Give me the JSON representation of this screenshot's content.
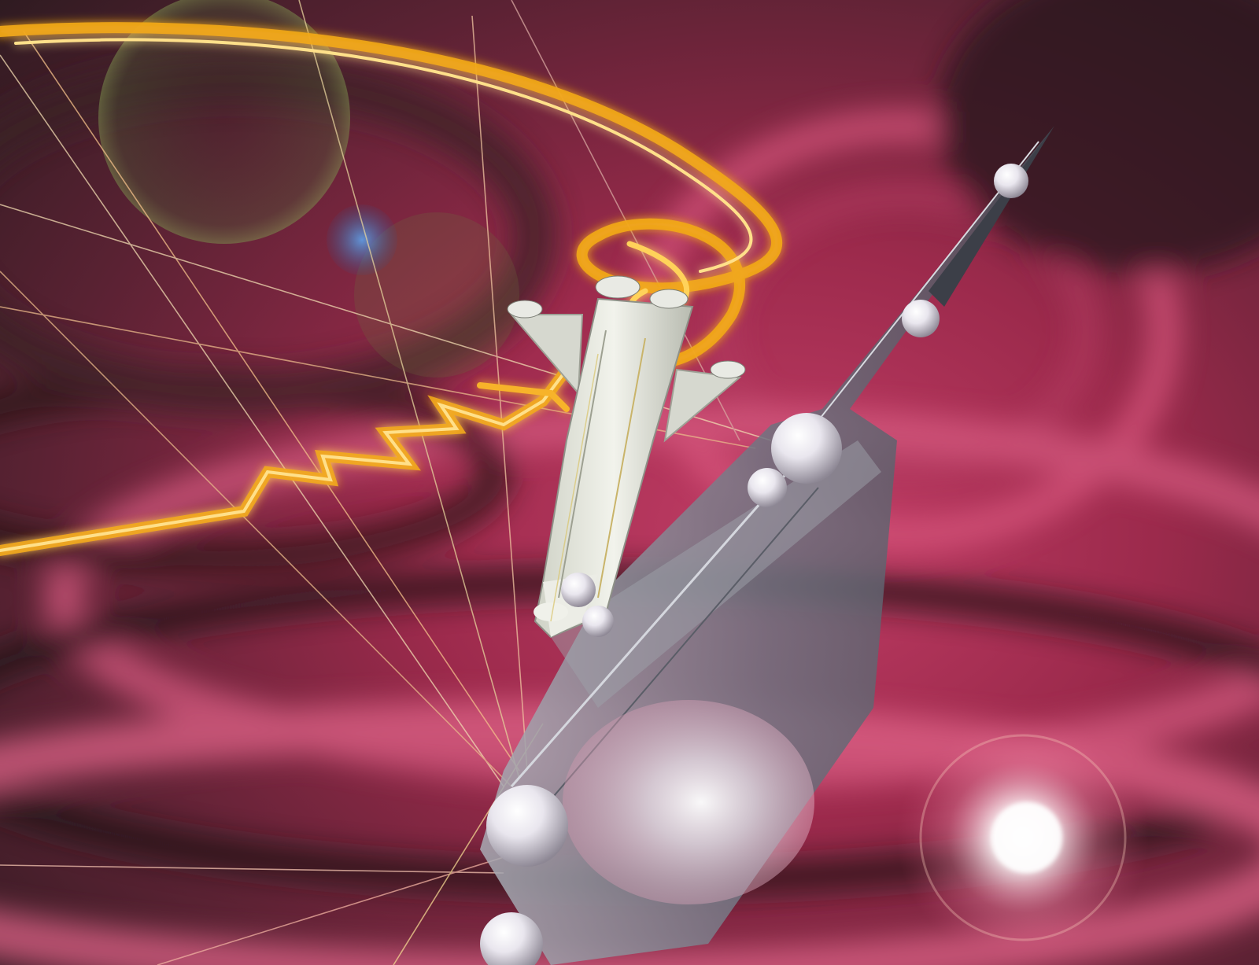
{
  "scene": {
    "subject": "space-shuttle-over-tower",
    "palette": {
      "backdrop_dark": "#2b1a1f",
      "backdrop_magenta": "#b8365c",
      "backdrop_pink": "#d9577e",
      "energy_gold": "#f2b21c",
      "energy_core": "#ffe38a",
      "shuttle_body": "#e6e8e0",
      "tower_grey": "#8c8f98",
      "orb_white": "#f4f2f6",
      "flare_green": "#6f7d4a",
      "flare_blue": "#4d7fb8"
    },
    "icons": [
      "shuttle-icon",
      "tower-icon",
      "orb-icon",
      "lens-flare-icon"
    ]
  }
}
